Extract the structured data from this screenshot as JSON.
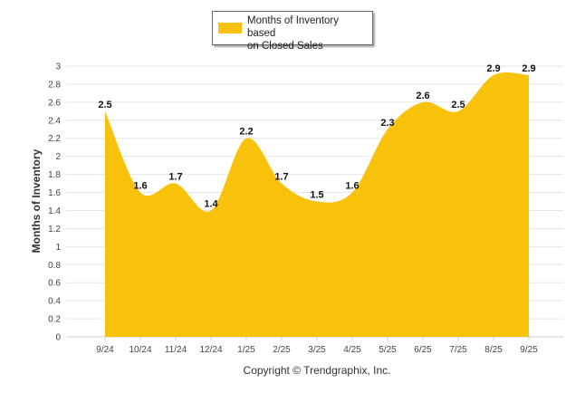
{
  "chart_data": {
    "type": "area",
    "title": "",
    "xlabel": "",
    "ylabel": "Months of Inventory",
    "ylim": [
      0,
      3
    ],
    "yticks": [
      "0",
      "0.2",
      "0.4",
      "0.6",
      "0.8",
      "1",
      "1.2",
      "1.4",
      "1.6",
      "1.8",
      "2",
      "2.2",
      "2.4",
      "2.6",
      "2.8",
      "3"
    ],
    "categories": [
      "9/24",
      "10/24",
      "11/24",
      "12/24",
      "1/25",
      "2/25",
      "3/25",
      "4/25",
      "5/25",
      "6/25",
      "7/25",
      "8/25",
      "9/25"
    ],
    "series": [
      {
        "name": "Months of Inventory based on Closed Sales",
        "values": [
          2.5,
          1.6,
          1.7,
          1.4,
          2.2,
          1.7,
          1.5,
          1.6,
          2.3,
          2.6,
          2.5,
          2.9,
          2.9
        ],
        "labels": [
          "2.5",
          "1.6",
          "1.7",
          "1.4",
          "2.2",
          "1.7",
          "1.5",
          "1.6",
          "2.3",
          "2.6",
          "2.5",
          "2.9",
          "2.9"
        ]
      }
    ],
    "legend": {
      "position": "top",
      "line1": "Months of Inventory based",
      "line2": "on Closed Sales"
    },
    "grid": true,
    "colors": {
      "fill": "#F9C20A",
      "grid": "#E6E6E6",
      "axis": "#CCCCCC"
    }
  },
  "footer": {
    "copyright": "Copyright © Trendgraphix, Inc."
  }
}
